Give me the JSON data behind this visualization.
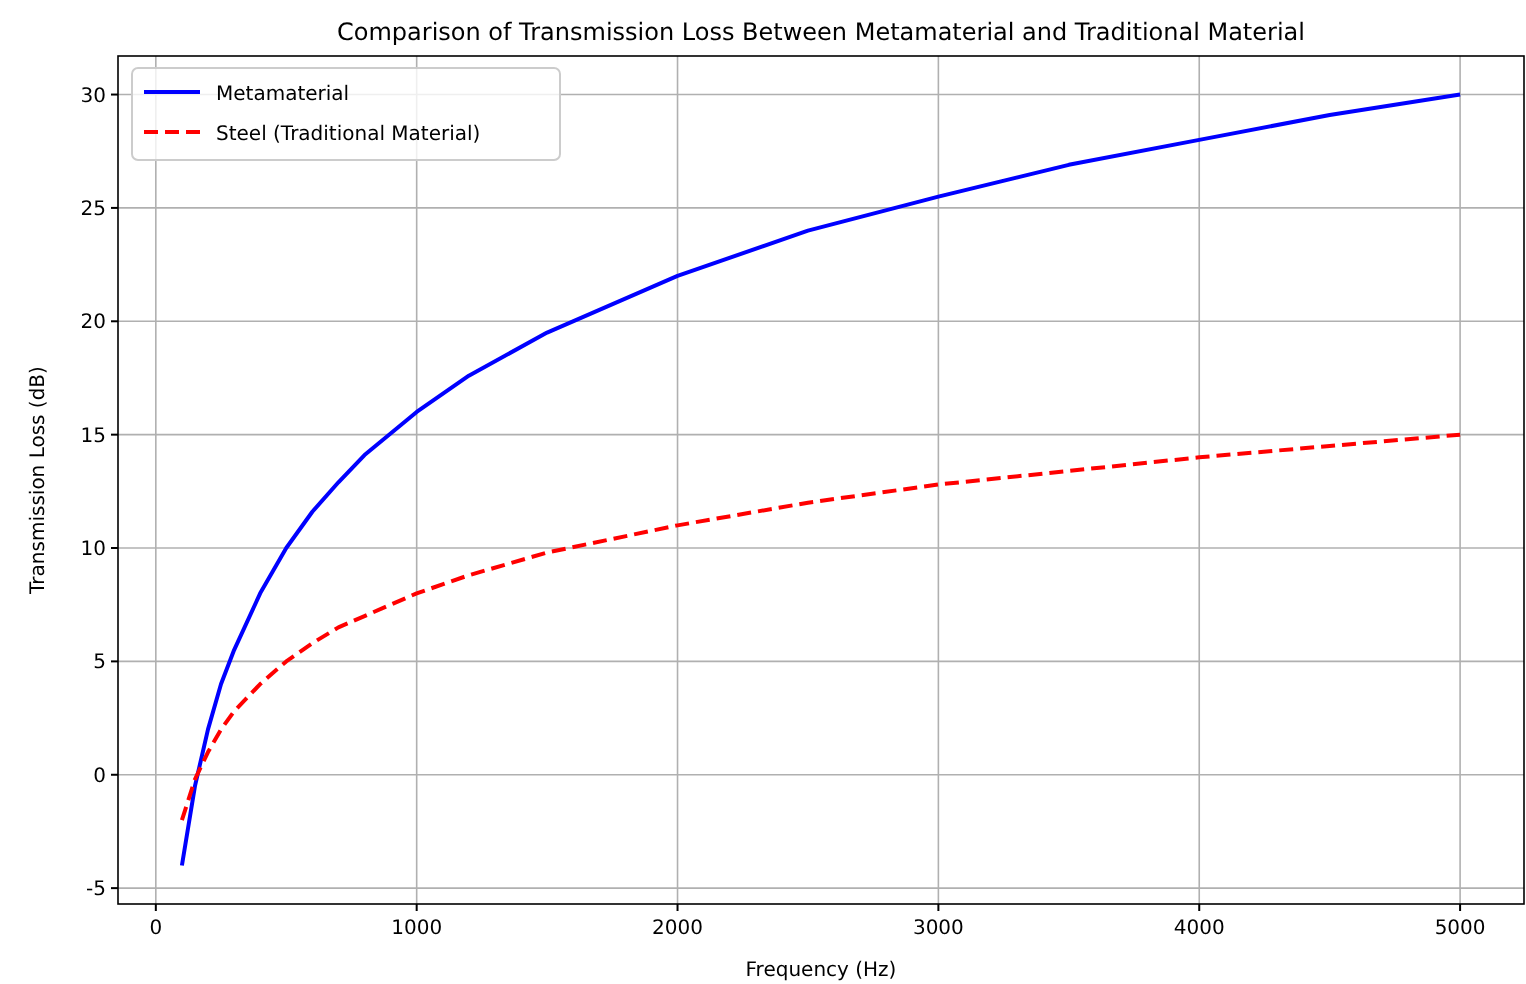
{
  "chart_data": {
    "type": "line",
    "title": "Comparison of Transmission Loss Between Metamaterial and Traditional Material",
    "xlabel": "Frequency (Hz)",
    "ylabel": "Transmission Loss (dB)",
    "x": [
      100,
      150,
      200,
      250,
      300,
      400,
      500,
      600,
      700,
      800,
      1000,
      1200,
      1500,
      2000,
      2500,
      3000,
      3500,
      4000,
      4500,
      5000
    ],
    "series": [
      {
        "name": "Metamaterial",
        "color": "#0000ff",
        "line_style": "solid",
        "values": [
          -4,
          -0.5,
          2,
          4,
          5.5,
          8,
          10,
          11.6,
          12.9,
          14.1,
          16,
          17.6,
          19.5,
          22,
          24,
          25.5,
          26.9,
          28,
          29.1,
          30
        ]
      },
      {
        "name": "Steel (Traditional Material)",
        "color": "#ff0000",
        "line_style": "dashed",
        "values": [
          -2,
          -0.2,
          1,
          2,
          2.8,
          4,
          5,
          5.8,
          6.5,
          7,
          8,
          8.8,
          9.8,
          11,
          12,
          12.8,
          13.4,
          14,
          14.5,
          15
        ]
      }
    ],
    "xlim": [
      -145,
      5245
    ],
    "ylim": [
      -5.7,
      31.7
    ],
    "xticks": [
      0,
      1000,
      2000,
      3000,
      4000,
      5000
    ],
    "yticks": [
      -5,
      0,
      5,
      10,
      15,
      20,
      25,
      30
    ],
    "grid": true,
    "legend": "top left",
    "marker": "none"
  }
}
